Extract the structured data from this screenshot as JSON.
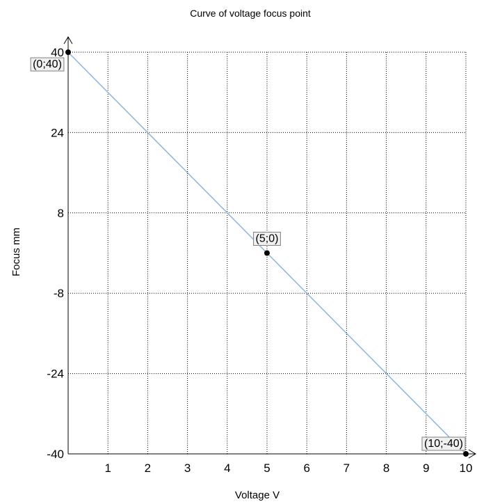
{
  "chart_data": {
    "type": "line",
    "title": "Curve of voltage focus point",
    "xlabel": "Voltage V",
    "ylabel": "Focus mm",
    "xlim": [
      0,
      10
    ],
    "ylim": [
      -40,
      40
    ],
    "x_ticks": [
      1,
      2,
      3,
      4,
      5,
      6,
      7,
      8,
      9,
      10
    ],
    "y_ticks": [
      40,
      24,
      8,
      -8,
      -24,
      -40
    ],
    "grid": true,
    "grid_style": "dotted",
    "series": [
      {
        "color": "#8db4e2",
        "points": [
          {
            "x": 0,
            "y": 40
          },
          {
            "x": 10,
            "y": -40
          }
        ]
      }
    ],
    "markers": [
      {
        "x": 0,
        "y": 40,
        "label": "(0;40)"
      },
      {
        "x": 5,
        "y": 0,
        "label": "(5;0)"
      },
      {
        "x": 10,
        "y": -40,
        "label": "(10;-40)"
      }
    ],
    "colors": {
      "line": "#8db4e2",
      "marker": "#000000",
      "grid": "#000000",
      "axis": "#000000",
      "label_border": "#808080",
      "label_fill": "#f0f0f0"
    }
  }
}
